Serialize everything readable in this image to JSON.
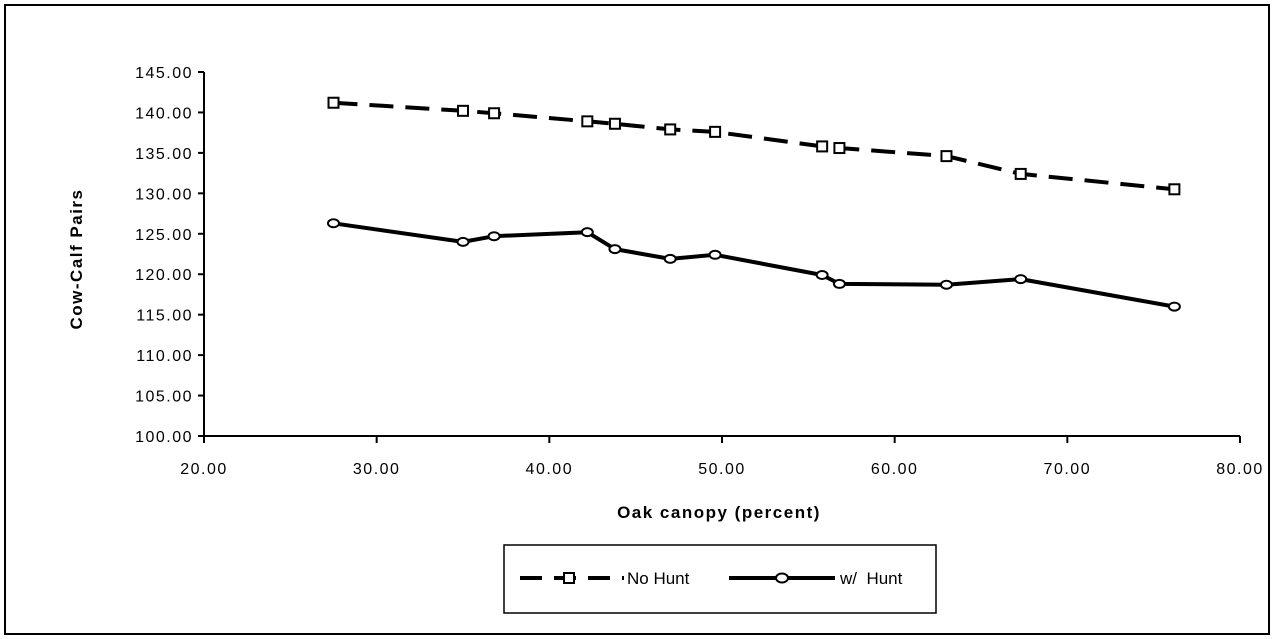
{
  "chart_data": {
    "type": "line",
    "xlabel": "Oak  canopy  (percent)",
    "ylabel": "Cow-Calf  Pairs",
    "xlim": [
      20,
      80
    ],
    "ylim": [
      100,
      145
    ],
    "x_ticks": [
      "20.00",
      "30.00",
      "40.00",
      "50.00",
      "60.00",
      "70.00",
      "80.00"
    ],
    "y_ticks": [
      "100.00",
      "105.00",
      "110.00",
      "115.00",
      "120.00",
      "125.00",
      "130.00",
      "135.00",
      "140.00",
      "145.00"
    ],
    "grid": false,
    "legend": "bottom-center",
    "series": [
      {
        "name": "No Hunt",
        "marker": "square",
        "line": "dashed",
        "color": "#000000",
        "points": [
          [
            27.5,
            141.2
          ],
          [
            35.0,
            140.2
          ],
          [
            36.8,
            139.9
          ],
          [
            42.2,
            138.9
          ],
          [
            43.8,
            138.6
          ],
          [
            47.0,
            137.9
          ],
          [
            49.6,
            137.6
          ],
          [
            55.8,
            135.8
          ],
          [
            56.8,
            135.6
          ],
          [
            63.0,
            134.6
          ],
          [
            67.3,
            132.4
          ],
          [
            76.2,
            130.5
          ]
        ]
      },
      {
        "name": "w/  Hunt",
        "marker": "circle",
        "line": "solid",
        "color": "#000000",
        "points": [
          [
            27.5,
            126.3
          ],
          [
            35.0,
            124.0
          ],
          [
            36.8,
            124.7
          ],
          [
            42.2,
            125.2
          ],
          [
            43.8,
            123.1
          ],
          [
            47.0,
            121.9
          ],
          [
            49.6,
            122.4
          ],
          [
            55.8,
            119.9
          ],
          [
            56.8,
            118.8
          ],
          [
            63.0,
            118.7
          ],
          [
            67.3,
            119.4
          ],
          [
            76.2,
            116.0
          ]
        ]
      }
    ]
  }
}
